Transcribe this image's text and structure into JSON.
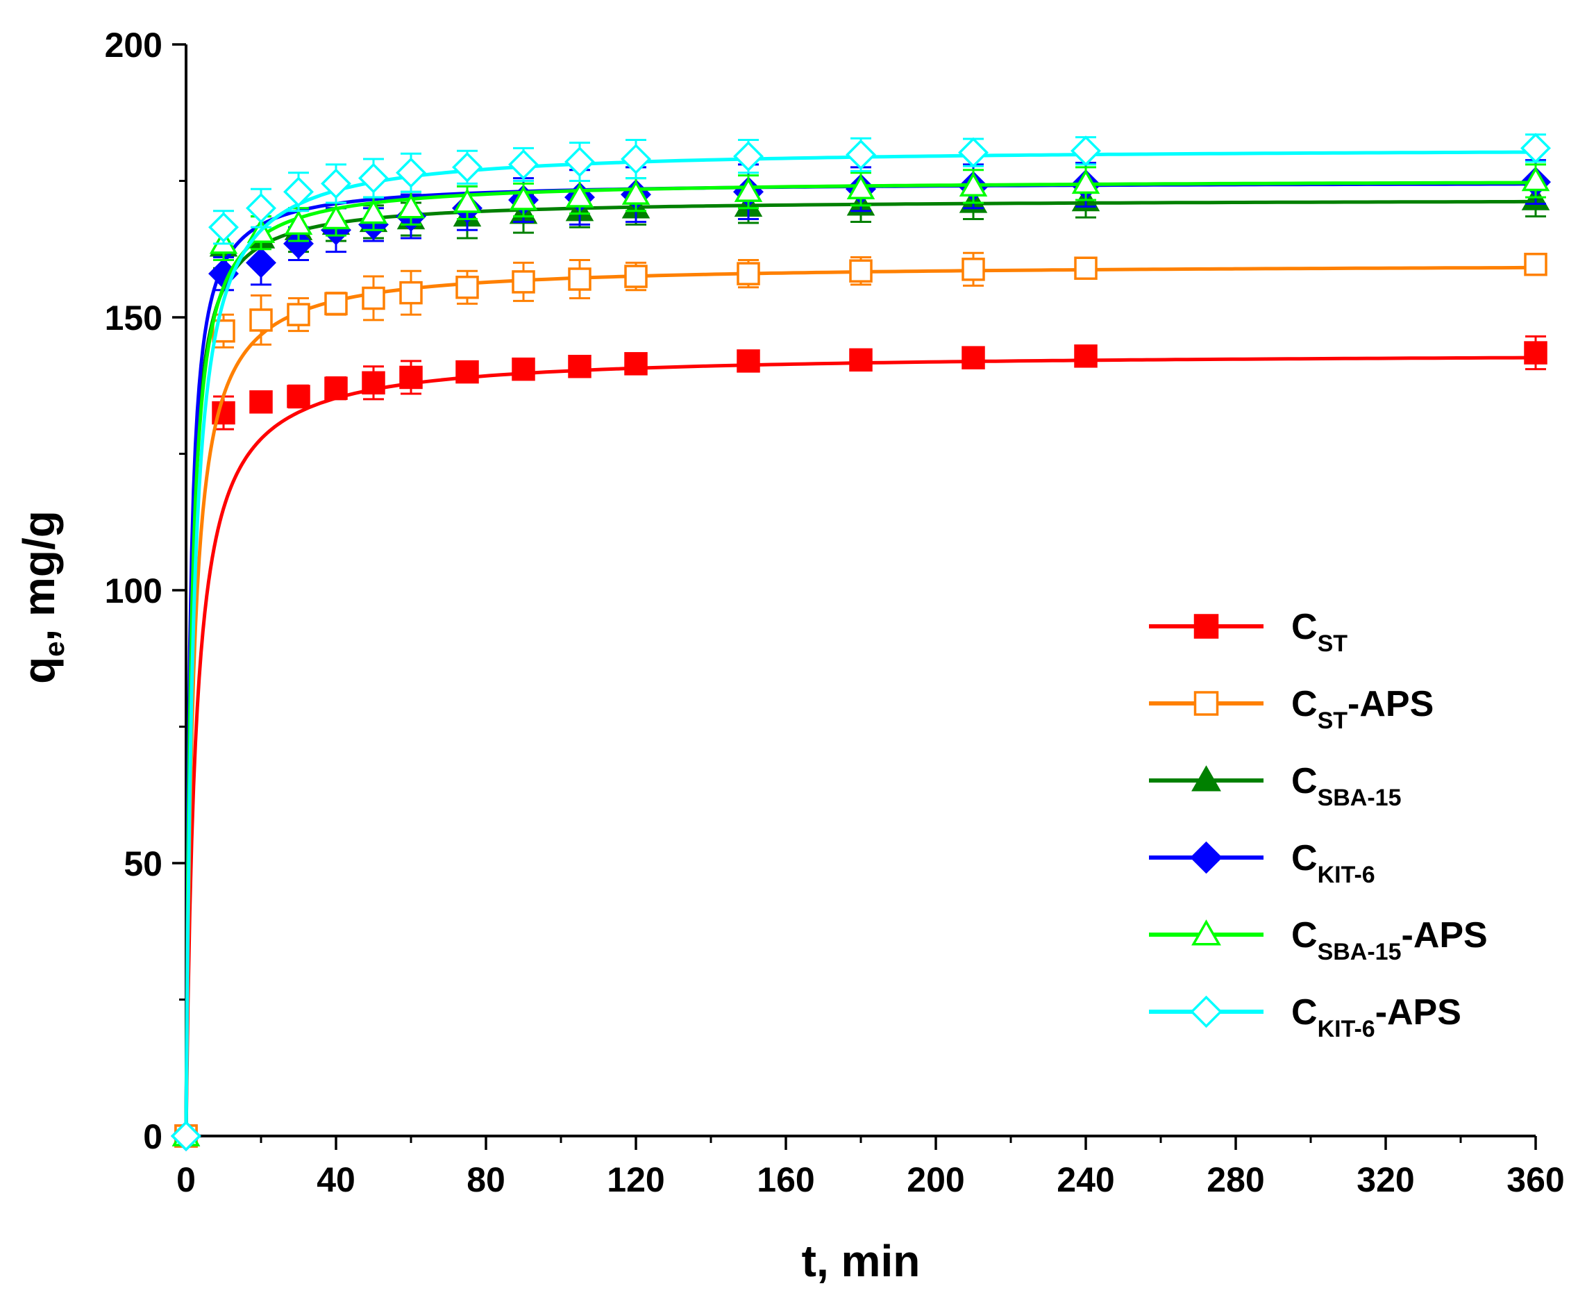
{
  "chart_data": {
    "type": "line",
    "title": "",
    "xlabel": "t, min",
    "ylabel": {
      "main": "q",
      "sub": "e",
      "rest": ", mg/g"
    },
    "xlim": [
      0,
      360
    ],
    "ylim": [
      0,
      200
    ],
    "xticks": [
      0,
      40,
      80,
      120,
      160,
      200,
      240,
      280,
      320,
      360
    ],
    "yticks": [
      0,
      50,
      100,
      150,
      200
    ],
    "x_minor_step": 20,
    "y_minor_step": 25,
    "legend_position": "right-middle",
    "series": [
      {
        "name": "C_ST",
        "label_main": "C",
        "label_sub": "ST",
        "label_suffix": "",
        "color": "#ff0000",
        "marker": "square",
        "filled": true,
        "x": [
          0,
          10,
          20,
          30,
          40,
          50,
          60,
          75,
          90,
          105,
          120,
          150,
          180,
          210,
          240,
          360
        ],
        "y": [
          0,
          132.5,
          134.5,
          135.5,
          137,
          138,
          139,
          140,
          140.5,
          141,
          141.5,
          142,
          142.2,
          142.6,
          142.9,
          143.5
        ],
        "err": [
          0,
          3,
          1.5,
          2,
          2,
          3,
          3,
          1.5,
          1.5,
          1.5,
          1.5,
          1.5,
          1.5,
          1.5,
          1.5,
          3
        ],
        "fit_qe": 143.6,
        "fit_k": 0.28
      },
      {
        "name": "C_ST-APS",
        "label_main": "C",
        "label_sub": "ST",
        "label_suffix": "-APS",
        "color": "#ff8000",
        "marker": "square",
        "filled": false,
        "x": [
          0,
          10,
          20,
          30,
          40,
          50,
          60,
          75,
          90,
          105,
          120,
          150,
          180,
          210,
          240,
          360
        ],
        "y": [
          0,
          147.5,
          149.5,
          150.5,
          152.5,
          153.5,
          154.5,
          155.5,
          156.5,
          157,
          157.5,
          158,
          158.5,
          158.8,
          159,
          159.7
        ],
        "err": [
          0,
          3,
          4.5,
          3,
          2,
          4,
          4,
          3,
          3.5,
          3.5,
          2.5,
          2.5,
          2.5,
          3,
          1.5,
          1.5
        ],
        "fit_qe": 159.9,
        "fit_k": 0.35
      },
      {
        "name": "C_SBA-15",
        "label_main": "C",
        "label_sub": "SBA-15",
        "label_suffix": "",
        "color": "#008000",
        "marker": "triangle",
        "filled": true,
        "x": [
          0,
          10,
          20,
          30,
          40,
          50,
          60,
          75,
          90,
          105,
          120,
          150,
          180,
          210,
          240,
          360
        ],
        "y": [
          0,
          163,
          164.5,
          166,
          167,
          167.5,
          168,
          168.5,
          169,
          169.5,
          170,
          170.3,
          170.5,
          171,
          171.3,
          171.5
        ],
        "err": [
          0,
          4,
          4,
          4,
          3,
          3,
          3,
          4,
          3.5,
          3,
          3,
          3,
          3,
          3,
          3,
          3
        ],
        "fit_qe": 171.7,
        "fit_k": 0.55
      },
      {
        "name": "C_KIT-6",
        "label_main": "C",
        "label_sub": "KIT-6",
        "label_suffix": "",
        "color": "#0000ff",
        "marker": "diamond",
        "filled": true,
        "x": [
          0,
          10,
          20,
          30,
          40,
          50,
          60,
          75,
          90,
          105,
          120,
          150,
          180,
          210,
          240,
          360
        ],
        "y": [
          0,
          158,
          160,
          163.5,
          166,
          167,
          168.5,
          170,
          171.5,
          172,
          172.5,
          173,
          173.5,
          174,
          174.3,
          174.8
        ],
        "err": [
          0,
          3,
          4,
          3,
          4,
          3,
          4,
          4,
          4,
          5,
          5,
          5,
          4,
          4,
          4,
          4
        ],
        "fit_qe": 174.9,
        "fit_k": 0.6
      },
      {
        "name": "C_SBA-15-APS",
        "label_main": "C",
        "label_sub": "SBA-15",
        "label_suffix": "-APS",
        "color": "#00ff00",
        "marker": "triangle",
        "filled": false,
        "x": [
          0,
          10,
          20,
          30,
          40,
          50,
          60,
          75,
          90,
          105,
          120,
          150,
          180,
          210,
          240,
          360
        ],
        "y": [
          0,
          163.5,
          165.5,
          167,
          168,
          169,
          170,
          171,
          171.5,
          172,
          172.5,
          173,
          173.5,
          174,
          174.5,
          175
        ],
        "err": [
          0,
          3,
          3,
          3,
          3,
          3,
          3,
          3,
          3,
          3,
          3,
          3,
          3,
          3,
          3,
          3
        ],
        "fit_qe": 175.3,
        "fit_k": 0.45
      },
      {
        "name": "C_KIT-6-APS",
        "label_main": "C",
        "label_sub": "KIT-6",
        "label_suffix": "-APS",
        "color": "#00ffff",
        "marker": "diamond",
        "filled": false,
        "x": [
          0,
          10,
          20,
          30,
          40,
          50,
          60,
          75,
          90,
          105,
          120,
          150,
          180,
          210,
          240,
          360
        ],
        "y": [
          0,
          166.5,
          170,
          173,
          174.5,
          175.5,
          176.5,
          177.5,
          178,
          178.5,
          179,
          179.5,
          179.8,
          180.2,
          180.5,
          181
        ],
        "err": [
          0,
          3,
          3.5,
          3.5,
          3.5,
          3.5,
          3.5,
          3,
          3,
          3.5,
          3.5,
          3,
          3,
          2.5,
          2.5,
          2.5
        ],
        "fit_qe": 181.2,
        "fit_k": 0.3
      }
    ]
  }
}
